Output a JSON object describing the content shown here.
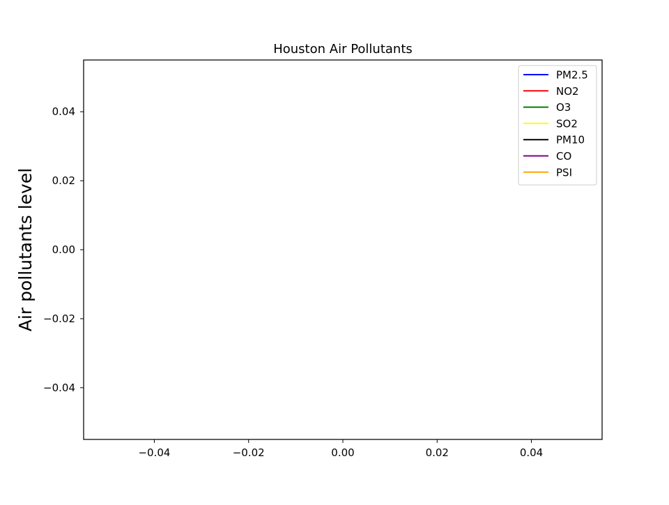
{
  "chart_data": {
    "type": "line",
    "title": "Houston Air Pollutants",
    "xlabel": "",
    "ylabel": "Air pollutants level",
    "xlim": [
      -0.055,
      0.055
    ],
    "ylim": [
      -0.055,
      0.055
    ],
    "x_ticks": [
      -0.04,
      -0.02,
      0.0,
      0.02,
      0.04
    ],
    "x_tick_labels": [
      "−0.04",
      "−0.02",
      "0.00",
      "0.02",
      "0.04"
    ],
    "y_ticks": [
      0.04,
      0.02,
      0.0,
      -0.02,
      -0.04
    ],
    "y_tick_labels": [
      "0.04",
      "0.02",
      "0.00",
      "−0.02",
      "−0.04"
    ],
    "grid": false,
    "legend_position": "top-right",
    "series": [
      {
        "name": "PM2.5",
        "color": "#0000ff",
        "x": [],
        "y": []
      },
      {
        "name": "NO2",
        "color": "#ff0000",
        "x": [],
        "y": []
      },
      {
        "name": "O3",
        "color": "#008000",
        "x": [],
        "y": []
      },
      {
        "name": "SO2",
        "color": "#ffff00",
        "x": [],
        "y": []
      },
      {
        "name": "PM10",
        "color": "#000000",
        "x": [],
        "y": []
      },
      {
        "name": "CO",
        "color": "#800080",
        "x": [],
        "y": []
      },
      {
        "name": "PSI",
        "color": "#ffa500",
        "x": [],
        "y": []
      }
    ]
  }
}
